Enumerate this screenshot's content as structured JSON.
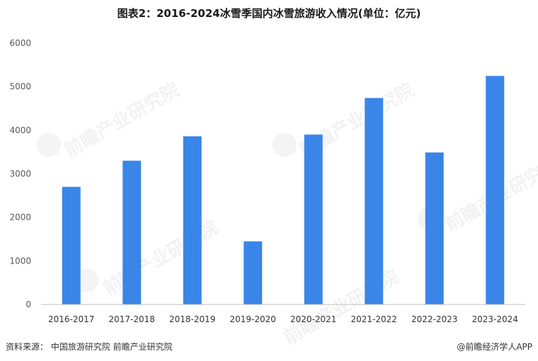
{
  "chart_data": {
    "type": "bar",
    "title": "图表2：2016-2024冰雪季国内冰雪旅游收入情况(单位：亿元)",
    "categories": [
      "2016-2017",
      "2017-2018",
      "2018-2019",
      "2019-2020",
      "2020-2021",
      "2021-2022",
      "2022-2023",
      "2023-2024"
    ],
    "values": [
      2700,
      3300,
      3860,
      1450,
      3900,
      4740,
      3490,
      5247
    ],
    "ylim": [
      0,
      6000
    ],
    "yticks": [
      "0",
      "1000",
      "2000",
      "3000",
      "4000",
      "5000",
      "6000"
    ],
    "bar_color": "#3a86e8",
    "axis_color": "#bfbfbf",
    "grid": false,
    "legend": "none"
  },
  "footer": {
    "source": "资料来源：  中国旅游研究院 前瞻产业研究院",
    "brand": "@前瞻经济学人APP"
  },
  "watermark": {
    "text": "前瞻产业研究院"
  }
}
